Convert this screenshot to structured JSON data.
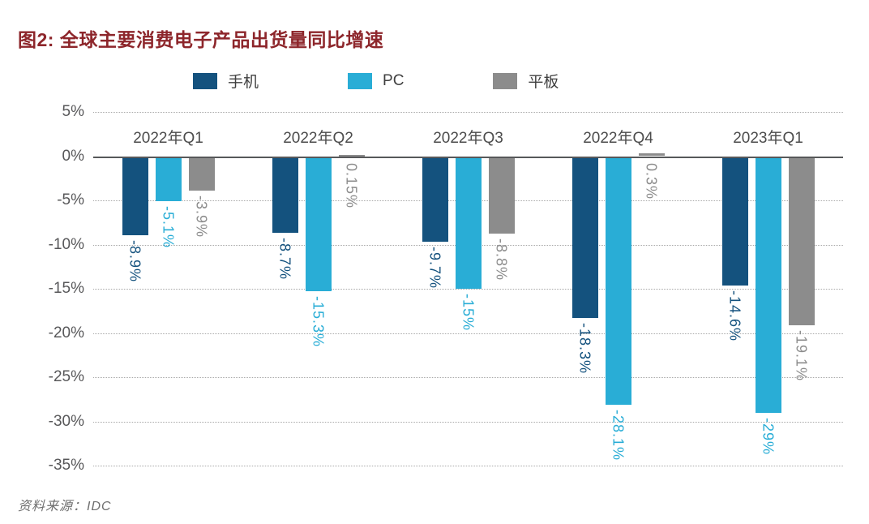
{
  "title": "图2: 全球主要消费电子产品出货量同比增速",
  "source": "资料来源：IDC",
  "chart_data": {
    "type": "bar",
    "title": "图2: 全球主要消费电子产品出货量同比增速",
    "categories": [
      "2022年Q1",
      "2022年Q2",
      "2022年Q3",
      "2022年Q4",
      "2023年Q1"
    ],
    "series": [
      {
        "name": "手机",
        "color": "#14527e",
        "values": [
          -8.9,
          -8.7,
          -9.7,
          -18.3,
          -14.6
        ],
        "labels": [
          "-8.9%",
          "-8.7%",
          "-9.7%",
          "-18.3%",
          "-14.6%"
        ]
      },
      {
        "name": "PC",
        "color": "#29add6",
        "values": [
          -5.1,
          -15.3,
          -15,
          -28.1,
          -29
        ],
        "labels": [
          "-5.1%",
          "-15.3%",
          "-15%",
          "-28.1%",
          "-29%"
        ]
      },
      {
        "name": "平板",
        "color": "#8c8c8c",
        "values": [
          -3.9,
          0.15,
          -8.8,
          0.3,
          -19.1
        ],
        "labels": [
          "-3.9%",
          "0.15%",
          "-8.8%",
          "0.3%",
          "-19.1%"
        ]
      }
    ],
    "xlabel": "",
    "ylabel": "",
    "ylim": [
      -35,
      5
    ],
    "y_tick_values": [
      5,
      0,
      -5,
      -10,
      -15,
      -20,
      -25,
      -30,
      -35
    ],
    "y_tick_labels": [
      "5%",
      "0%",
      "-5%",
      "-10%",
      "-15%",
      "-20%",
      "-25%",
      "-30%",
      "-35%"
    ],
    "grid": "horizontal-dotted",
    "legend_position": "top",
    "value_labels_rotated": true,
    "source": "资料来源：IDC"
  }
}
